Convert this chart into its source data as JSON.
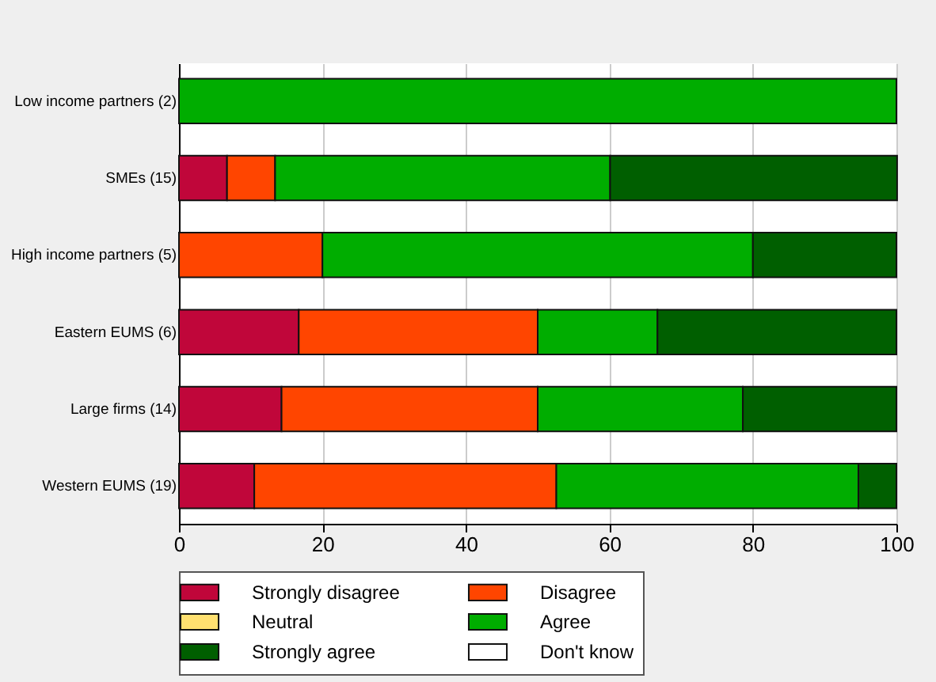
{
  "chart_data": {
    "type": "bar",
    "orientation": "horizontal",
    "stacked": true,
    "categories": [
      "Low income partners (2)",
      "SMEs (15)",
      "High income partners (5)",
      "Eastern EUMS (6)",
      "Large firms (14)",
      "Western EUMS (19)"
    ],
    "series": [
      {
        "name": "Strongly disagree",
        "color": "#c0063a",
        "values": [
          0,
          6.7,
          0,
          16.7,
          14.3,
          10.5
        ]
      },
      {
        "name": "Disagree",
        "color": "#ff4500",
        "values": [
          0,
          6.7,
          20,
          33.3,
          35.7,
          42.1
        ]
      },
      {
        "name": "Neutral",
        "color": "#ffe070",
        "values": [
          0,
          0,
          0,
          0,
          0,
          0
        ]
      },
      {
        "name": "Agree",
        "color": "#00ad00",
        "values": [
          100,
          46.7,
          60,
          16.7,
          28.6,
          42.1
        ]
      },
      {
        "name": "Strongly agree",
        "color": "#005f00",
        "values": [
          0,
          40,
          20,
          33.3,
          21.4,
          5.3
        ]
      },
      {
        "name": "Don't know",
        "color": "#ffffff",
        "values": [
          0,
          0,
          0,
          0,
          0,
          0
        ]
      }
    ],
    "xlim": [
      0,
      100
    ],
    "xticks": [
      0,
      20,
      40,
      60,
      80,
      100
    ],
    "grid": "x",
    "legend": "bottom"
  }
}
